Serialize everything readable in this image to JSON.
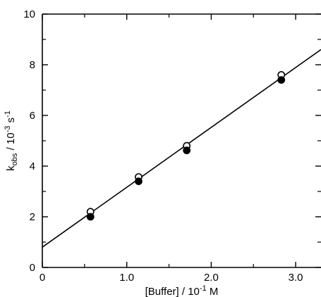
{
  "chart_data": {
    "type": "scatter",
    "title": "",
    "xlabel": "[Buffer] / 10⁻¹ M",
    "ylabel": "kobs / 10⁻³ s⁻¹",
    "xlabel_parts": {
      "base": "[Buffer] / 10",
      "exp": "-1",
      "unit": " M"
    },
    "ylabel_parts": {
      "base": "k",
      "sub": "obs",
      "mid": " / 10",
      "exp": "-3",
      "unit": " s",
      "unit_exp": "-1"
    },
    "xlim": [
      0,
      3.3
    ],
    "ylim": [
      0,
      10
    ],
    "x_ticks": [
      {
        "value": 0,
        "label": "0"
      },
      {
        "value": 1.0,
        "label": "1.0"
      },
      {
        "value": 2.0,
        "label": "2.0"
      },
      {
        "value": 3.0,
        "label": "3.0"
      }
    ],
    "y_ticks": [
      {
        "value": 0,
        "label": "0"
      },
      {
        "value": 2,
        "label": "2"
      },
      {
        "value": 4,
        "label": "4"
      },
      {
        "value": 6,
        "label": "6"
      },
      {
        "value": 8,
        "label": "8"
      },
      {
        "value": 10,
        "label": "10"
      }
    ],
    "grid": false,
    "series": [
      {
        "marker": "open-circle",
        "points": [
          {
            "x": 0.57,
            "y": 2.2
          },
          {
            "x": 1.14,
            "y": 3.57
          },
          {
            "x": 1.71,
            "y": 4.8
          },
          {
            "x": 2.83,
            "y": 7.6
          }
        ]
      },
      {
        "marker": "filled-circle",
        "points": [
          {
            "x": 0.57,
            "y": 2.0
          },
          {
            "x": 1.14,
            "y": 3.4
          },
          {
            "x": 1.71,
            "y": 4.62
          },
          {
            "x": 2.83,
            "y": 7.4
          }
        ]
      }
    ],
    "fit_line": {
      "x0": 0,
      "y0": 0.8,
      "x1": 3.3,
      "y1": 8.6
    }
  }
}
